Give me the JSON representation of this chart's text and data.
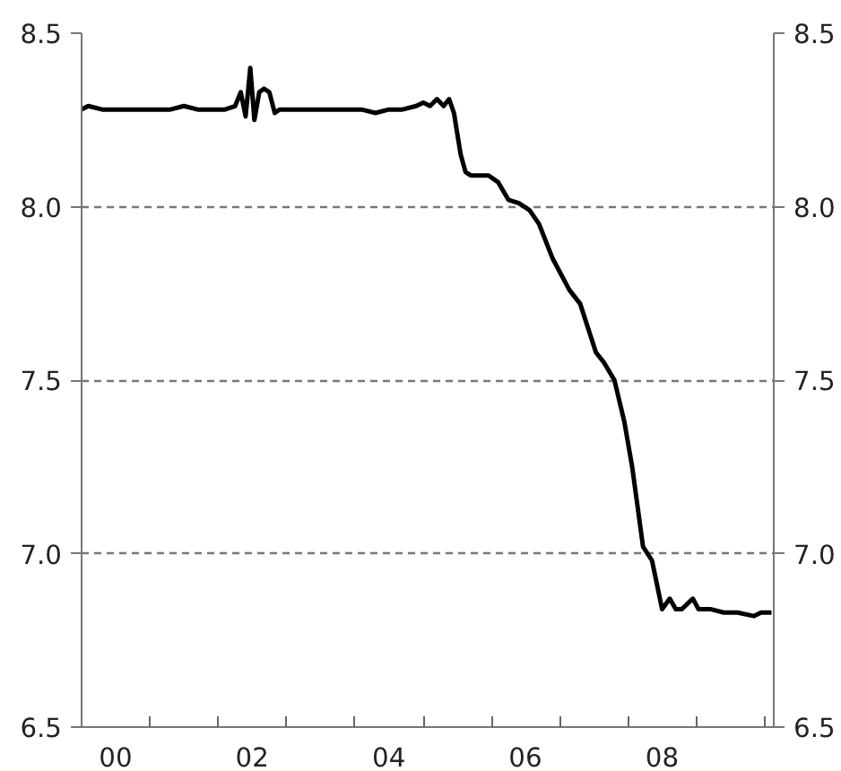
{
  "chart_data": {
    "type": "line",
    "x": [
      "2000-01-01",
      "2000-02-06",
      "2000-04-20",
      "2000-07-01",
      "2000-09-12",
      "2000-11-24",
      "2001-02-06",
      "2001-04-20",
      "2001-07-01",
      "2001-09-12",
      "2001-11-24",
      "2002-02-06",
      "2002-04-01",
      "2002-05-01",
      "2002-05-27",
      "2002-06-21",
      "2002-07-13",
      "2002-08-08",
      "2002-09-02",
      "2002-10-01",
      "2002-10-30",
      "2002-11-24",
      "2002-12-12",
      "2003-02-06",
      "2003-04-20",
      "2003-07-01",
      "2003-09-12",
      "2003-11-24",
      "2004-02-06",
      "2004-04-20",
      "2004-07-01",
      "2004-09-12",
      "2004-11-24",
      "2005-01-01",
      "2005-02-06",
      "2005-03-15",
      "2005-04-20",
      "2005-05-19",
      "2005-06-14",
      "2005-07-20",
      "2005-08-15",
      "2005-09-12",
      "2005-12-16",
      "2006-02-06",
      "2006-04-01",
      "2006-05-27",
      "2006-07-23",
      "2006-09-12",
      "2006-11-24",
      "2007-02-21",
      "2007-04-20",
      "2007-07-13",
      "2007-08-26",
      "2007-10-20",
      "2007-12-12",
      "2008-01-23",
      "2008-03-21",
      "2008-05-08",
      "2008-07-01",
      "2008-08-11",
      "2008-09-12",
      "2008-10-15",
      "2008-12-12",
      "2009-01-12",
      "2009-03-15",
      "2009-05-27",
      "2009-08-08",
      "2009-11-03",
      "2009-12-12",
      "2010-02-06"
    ],
    "series": [
      {
        "color": "#000000",
        "values": [
          8.28,
          8.29,
          8.28,
          8.28,
          8.28,
          8.28,
          8.28,
          8.28,
          8.29,
          8.28,
          8.28,
          8.28,
          8.29,
          8.33,
          8.26,
          8.4,
          8.25,
          8.33,
          8.34,
          8.33,
          8.27,
          8.28,
          8.28,
          8.28,
          8.28,
          8.28,
          8.28,
          8.28,
          8.28,
          8.27,
          8.28,
          8.28,
          8.29,
          8.3,
          8.29,
          8.31,
          8.29,
          8.31,
          8.27,
          8.15,
          8.1,
          8.09,
          8.09,
          8.07,
          8.02,
          8.01,
          7.99,
          7.95,
          7.85,
          7.76,
          7.72,
          7.58,
          7.55,
          7.5,
          7.38,
          7.25,
          7.02,
          6.98,
          6.84,
          6.87,
          6.84,
          6.84,
          6.87,
          6.84,
          6.84,
          6.83,
          6.83,
          6.82,
          6.83,
          6.83
        ]
      }
    ],
    "xlim": [
      "2000-01-01",
      "2010-02-18"
    ],
    "xticks": [
      {
        "value": "2000-01-01",
        "label": null
      },
      {
        "value": "2001-01-01",
        "label": null
      },
      {
        "value": "2002-01-01",
        "label": null
      },
      {
        "value": "2003-01-01",
        "label": null
      },
      {
        "value": "2004-01-01",
        "label": null
      },
      {
        "value": "2005-01-01",
        "label": null
      },
      {
        "value": "2006-01-01",
        "label": null
      },
      {
        "value": "2007-01-01",
        "label": null
      },
      {
        "value": "2008-01-01",
        "label": null
      },
      {
        "value": "2009-01-01",
        "label": null
      },
      {
        "value": "2010-01-01",
        "label": null
      },
      {
        "value": "2000-07-01",
        "label": "00"
      },
      {
        "value": "2002-07-01",
        "label": "02"
      },
      {
        "value": "2004-07-01",
        "label": "04"
      },
      {
        "value": "2006-07-01",
        "label": "06"
      },
      {
        "value": "2008-07-01",
        "label": "08"
      }
    ],
    "ylim": [
      6.5,
      8.5
    ],
    "yticks": [
      {
        "value": 6.5,
        "label": "6.5"
      },
      {
        "value": 7.0,
        "label": "7.0"
      },
      {
        "value": 7.5,
        "label": "7.5"
      },
      {
        "value": 8.0,
        "label": "8.0"
      },
      {
        "value": 8.5,
        "label": "8.5"
      }
    ],
    "y2lim": [
      6.5,
      8.5
    ],
    "y2ticks": [
      {
        "value": 6.5,
        "label": "6.5"
      },
      {
        "value": 7.0,
        "label": "7.0"
      },
      {
        "value": 7.5,
        "label": "7.5"
      },
      {
        "value": 8.0,
        "label": "8.0"
      },
      {
        "value": 8.5,
        "label": "8.5"
      }
    ],
    "grid": "y",
    "line_style": "solid",
    "marker": "none"
  }
}
